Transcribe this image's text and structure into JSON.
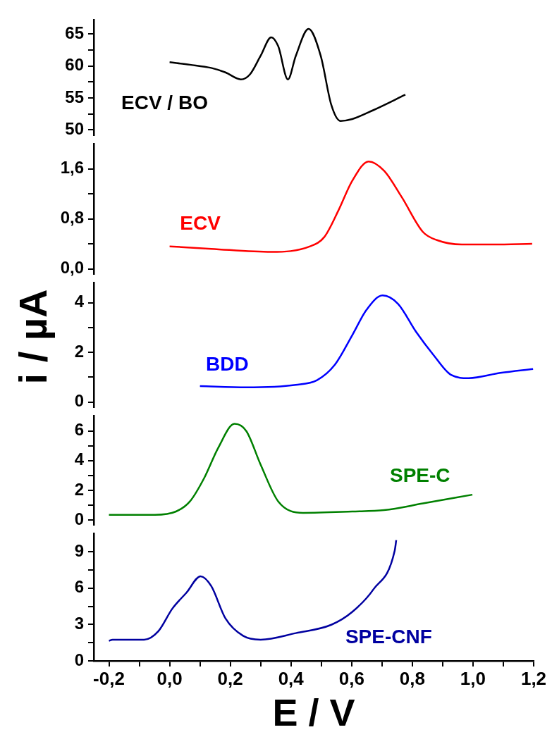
{
  "chart_data": [
    {
      "type": "line",
      "xlim": [
        -0.25,
        1.2
      ],
      "ylim": [
        49.2,
        67.2
      ],
      "yticks": [
        50,
        {
          "value": 52.5,
          "label": null
        },
        55,
        {
          "value": 57.5,
          "label": null
        },
        60,
        {
          "value": 62.5,
          "label": null
        },
        65
      ],
      "tick_labels": "y",
      "series": [
        {
          "name": "ECV / BO",
          "color": "#000000",
          "x": [
            0.0,
            0.067,
            0.137,
            0.184,
            0.235,
            0.265,
            0.3,
            0.335,
            0.358,
            0.39,
            0.416,
            0.458,
            0.498,
            0.533,
            0.563,
            0.602,
            0.672,
            0.777
          ],
          "values": [
            60.6,
            60.2,
            59.7,
            59.0,
            57.9,
            58.7,
            61.6,
            64.5,
            63.1,
            57.9,
            61.6,
            65.8,
            61.6,
            53.9,
            51.4,
            51.7,
            53.1,
            55.5
          ]
        }
      ]
    },
    {
      "type": "line",
      "xlim": [
        -0.25,
        1.2
      ],
      "ylim": [
        -0.08,
        2.0
      ],
      "yticks": [
        {
          "value": 0,
          "label": "0,0"
        },
        {
          "value": 0.4,
          "label": null
        },
        {
          "value": 0.8,
          "label": "0,8"
        },
        {
          "value": 1.2,
          "label": null
        },
        {
          "value": 1.6,
          "label": "1,6"
        }
      ],
      "tick_labels": "y",
      "series": [
        {
          "name": "ECV",
          "color": "#ff0000",
          "x": [
            0.0,
            0.137,
            0.335,
            0.463,
            0.51,
            0.556,
            0.602,
            0.656,
            0.707,
            0.765,
            0.835,
            0.881,
            0.963,
            1.067,
            1.195
          ],
          "values": [
            0.36,
            0.32,
            0.27,
            0.36,
            0.51,
            0.93,
            1.41,
            1.72,
            1.57,
            1.15,
            0.59,
            0.46,
            0.39,
            0.39,
            0.4
          ]
        }
      ]
    },
    {
      "type": "line",
      "xlim": [
        -0.25,
        1.2
      ],
      "ylim": [
        -0.2,
        4.8
      ],
      "yticks": [
        0,
        {
          "value": 1,
          "label": null
        },
        2,
        {
          "value": 3,
          "label": null
        },
        4
      ],
      "tick_labels": "y",
      "ylabel": "i / µA",
      "series": [
        {
          "name": "BDD",
          "color": "#0000ff",
          "x": [
            0.1,
            0.253,
            0.416,
            0.486,
            0.544,
            0.602,
            0.649,
            0.702,
            0.753,
            0.812,
            0.87,
            0.928,
            0.986,
            1.09,
            1.198
          ],
          "values": [
            0.64,
            0.59,
            0.69,
            0.88,
            1.49,
            2.69,
            3.71,
            4.29,
            3.95,
            2.83,
            1.89,
            1.09,
            0.96,
            1.17,
            1.33
          ]
        }
      ]
    },
    {
      "type": "line",
      "xlim": [
        -0.25,
        1.2
      ],
      "ylim": [
        -0.3,
        7.0
      ],
      "yticks": [
        0,
        {
          "value": 1,
          "label": null
        },
        2,
        {
          "value": 3,
          "label": null
        },
        4,
        {
          "value": 5,
          "label": null
        },
        6
      ],
      "tick_labels": "y",
      "series": [
        {
          "name": "SPE-C",
          "color": "#008000",
          "x": [
            -0.2,
            -0.049,
            0.021,
            0.067,
            0.114,
            0.16,
            0.214,
            0.253,
            0.3,
            0.358,
            0.44,
            0.602,
            0.707,
            0.835,
            0.998
          ],
          "values": [
            0.36,
            0.36,
            0.58,
            1.26,
            2.83,
            4.85,
            6.47,
            5.98,
            3.73,
            1.26,
            0.49,
            0.58,
            0.67,
            1.12,
            1.71
          ]
        }
      ]
    },
    {
      "type": "line",
      "xlim": [
        -0.25,
        1.2
      ],
      "ylim": [
        0,
        10.5
      ],
      "yticks": [
        0,
        {
          "value": 1.5,
          "label": null
        },
        3,
        {
          "value": 4.5,
          "label": null
        },
        6,
        {
          "value": 7.5,
          "label": null
        },
        9
      ],
      "xlabel": "E / V",
      "xticks": [
        {
          "value": -0.2,
          "label": "-0,2"
        },
        {
          "value": -0.1,
          "label": null
        },
        {
          "value": 0,
          "label": "0,0"
        },
        {
          "value": 0.1,
          "label": null
        },
        {
          "value": 0.2,
          "label": "0,2"
        },
        {
          "value": 0.3,
          "label": null
        },
        {
          "value": 0.4,
          "label": "0,4"
        },
        {
          "value": 0.5,
          "label": null
        },
        {
          "value": 0.6,
          "label": "0,6"
        },
        {
          "value": 0.7,
          "label": null
        },
        {
          "value": 0.8,
          "label": "0,8"
        },
        {
          "value": 0.9,
          "label": null
        },
        {
          "value": 1.0,
          "label": "1,0"
        },
        {
          "value": 1.1,
          "label": null
        },
        {
          "value": 1.2,
          "label": "1,2"
        }
      ],
      "series": [
        {
          "name": "SPE-CNF",
          "color": "#0000a0",
          "x": [
            -0.2,
            -0.188,
            -0.084,
            -0.037,
            0.009,
            0.056,
            0.102,
            0.137,
            0.184,
            0.242,
            0.3,
            0.416,
            0.533,
            0.602,
            0.672,
            0.742,
            0.747
          ],
          "values": [
            1.65,
            1.75,
            1.75,
            2.45,
            4.31,
            5.64,
            6.98,
            6.18,
            3.51,
            2.07,
            1.75,
            2.29,
            2.98,
            4.04,
            5.91,
            9.1,
            9.96
          ]
        }
      ]
    }
  ]
}
